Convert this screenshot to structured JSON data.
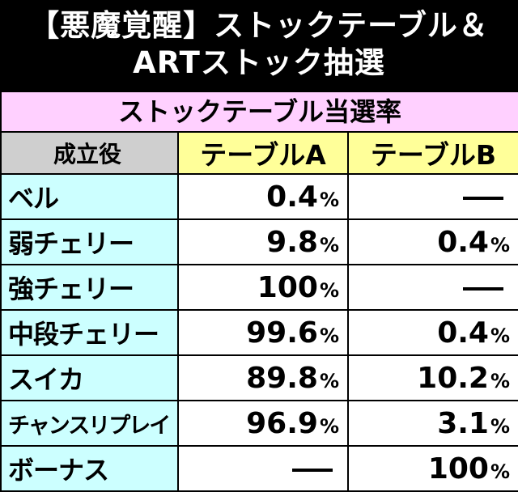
{
  "title": {
    "line1": "【悪魔覚醒】ストックテーブル＆",
    "line2": "ARTストック抽選"
  },
  "table": {
    "subtitle": "ストックテーブル当選率",
    "headers": {
      "role": "成立役",
      "table_a": "テーブルA",
      "table_b": "テーブルB"
    },
    "percent_sign": "%",
    "rows": [
      {
        "role": "ベル",
        "a": "0.4",
        "b": "—"
      },
      {
        "role": "弱チェリー",
        "a": "9.8",
        "b": "0.4"
      },
      {
        "role": "強チェリー",
        "a": "100",
        "b": "—"
      },
      {
        "role": "中段チェリー",
        "a": "99.6",
        "b": "0.4"
      },
      {
        "role": "スイカ",
        "a": "89.8",
        "b": "10.2"
      },
      {
        "role": "チャンスリプレイ",
        "a": "96.9",
        "b": "3.1"
      },
      {
        "role": "ボーナス",
        "a": "—",
        "b": "100"
      }
    ]
  }
}
